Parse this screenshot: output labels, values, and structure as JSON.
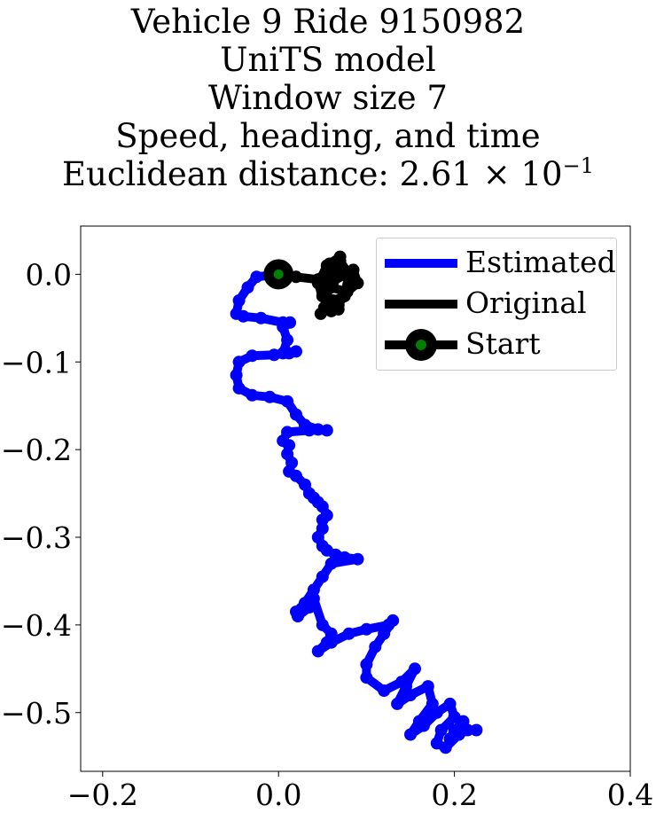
{
  "chart_data": {
    "type": "line",
    "title_lines": [
      "Vehicle 9 Ride 9150982",
      "UniTS model",
      "Window size 7",
      "Speed, heading, and time"
    ],
    "distance_label": "Euclidean distance: 2.61",
    "distance_times": "×",
    "distance_base": "10",
    "distance_exponent": "−1",
    "xlim": [
      -0.225,
      0.4
    ],
    "ylim": [
      -0.567,
      0.055
    ],
    "x_ticks": [
      -0.2,
      0.0,
      0.2,
      0.4
    ],
    "x_tick_labels": [
      "−0.2",
      "0.0",
      "0.2",
      "0.4"
    ],
    "y_ticks": [
      0.0,
      -0.1,
      -0.2,
      -0.3,
      -0.4,
      -0.5
    ],
    "y_tick_labels": [
      "0.0",
      "−0.1",
      "−0.2",
      "−0.3",
      "−0.4",
      "−0.5"
    ],
    "legend_placement": "top-right",
    "series": [
      {
        "name": "Estimated",
        "color": "#0000ff",
        "x": [
          0.0,
          -0.025,
          -0.035,
          -0.045,
          -0.048,
          -0.04,
          -0.02,
          0.005,
          0.013,
          0.005,
          0.01,
          0.005,
          0.012,
          0.02,
          -0.005,
          -0.03,
          -0.045,
          -0.048,
          -0.045,
          -0.03,
          -0.01,
          0.01,
          0.02,
          0.03,
          0.045,
          0.055,
          0.035,
          0.01,
          0.005,
          0.012,
          0.01,
          0.015,
          0.012,
          0.02,
          0.03,
          0.035,
          0.04,
          0.045,
          0.05,
          0.055,
          0.05,
          0.05,
          0.045,
          0.05,
          0.055,
          0.065,
          0.075,
          0.09,
          0.06,
          0.05,
          0.04,
          0.03,
          0.02,
          0.022,
          0.035,
          0.04,
          0.05,
          0.06,
          0.055,
          0.045,
          0.06,
          0.08,
          0.1,
          0.125,
          0.13,
          0.12,
          0.11,
          0.1,
          0.1,
          0.12,
          0.14,
          0.155,
          0.145,
          0.135,
          0.15,
          0.17,
          0.175,
          0.16,
          0.15,
          0.165,
          0.18,
          0.195,
          0.2,
          0.185,
          0.18,
          0.19,
          0.205,
          0.21,
          0.2,
          0.195,
          0.205,
          0.215,
          0.225
        ],
        "y": [
          0.0,
          -0.003,
          -0.015,
          -0.03,
          -0.045,
          -0.048,
          -0.05,
          -0.055,
          -0.055,
          -0.06,
          -0.075,
          -0.09,
          -0.09,
          -0.088,
          -0.092,
          -0.093,
          -0.1,
          -0.115,
          -0.13,
          -0.138,
          -0.14,
          -0.145,
          -0.16,
          -0.172,
          -0.177,
          -0.178,
          -0.178,
          -0.18,
          -0.19,
          -0.195,
          -0.205,
          -0.215,
          -0.225,
          -0.23,
          -0.24,
          -0.25,
          -0.255,
          -0.26,
          -0.265,
          -0.275,
          -0.28,
          -0.29,
          -0.3,
          -0.31,
          -0.315,
          -0.32,
          -0.323,
          -0.325,
          -0.33,
          -0.345,
          -0.36,
          -0.375,
          -0.385,
          -0.39,
          -0.38,
          -0.37,
          -0.4,
          -0.41,
          -0.42,
          -0.43,
          -0.42,
          -0.41,
          -0.405,
          -0.4,
          -0.395,
          -0.41,
          -0.425,
          -0.445,
          -0.46,
          -0.475,
          -0.465,
          -0.45,
          -0.47,
          -0.49,
          -0.48,
          -0.47,
          -0.49,
          -0.51,
          -0.525,
          -0.515,
          -0.5,
          -0.49,
          -0.505,
          -0.52,
          -0.535,
          -0.54,
          -0.525,
          -0.51,
          -0.52,
          -0.53,
          -0.525,
          -0.52,
          -0.52
        ]
      },
      {
        "name": "Original",
        "color": "#000000",
        "x": [
          0.0,
          0.02,
          0.045,
          0.06,
          0.07,
          0.058,
          0.062,
          0.085,
          0.09,
          0.078,
          0.06,
          0.048,
          0.055,
          0.07,
          0.08,
          0.075,
          0.062,
          0.05,
          0.055,
          0.068,
          0.082,
          0.072,
          0.058,
          0.045,
          0.05,
          0.062,
          0.068,
          0.06,
          0.052,
          0.048,
          0.055
        ],
        "y": [
          0.0,
          -0.003,
          -0.006,
          -0.005,
          0.02,
          0.012,
          -0.008,
          0.005,
          -0.01,
          -0.02,
          -0.015,
          -0.005,
          0.01,
          0.015,
          0.0,
          -0.025,
          -0.03,
          -0.02,
          -0.03,
          -0.035,
          -0.012,
          0.005,
          -0.002,
          -0.01,
          -0.025,
          -0.035,
          -0.04,
          -0.042,
          -0.038,
          -0.045,
          -0.03
        ]
      },
      {
        "name": "Start",
        "color": "#000000",
        "marker_color": "#008000",
        "x": [
          0.0
        ],
        "y": [
          0.0
        ]
      }
    ]
  }
}
